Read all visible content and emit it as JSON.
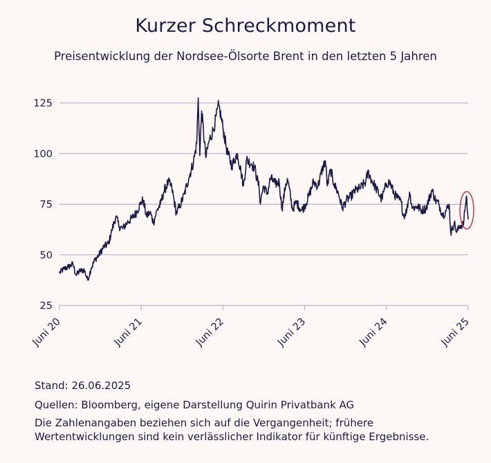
{
  "title": "Kurzer Schreckmoment",
  "subtitle": "Preisentwicklung der Nordsee-Ölsorte Brent in den letzten 5 Jahren",
  "footer": {
    "stand": "Stand: 26.06.2025",
    "sources": "Quellen: Bloomberg, eigene Darstellung Quirin Privatbank AG",
    "disclaimer": "Die Zahlenangaben beziehen sich auf die Vergangenheit; frühere Wertentwicklungen sind kein verlässlicher Indikator für künftige Ergebnisse."
  },
  "colors": {
    "line": "#1c1947",
    "grid": "#a9a5c7",
    "highlight": "#c0394b",
    "background": "#fdf8f5"
  },
  "chart_data": {
    "type": "line",
    "ylim": [
      25,
      125
    ],
    "yticks": [
      25,
      50,
      75,
      100,
      125
    ],
    "xlim": [
      "2020-06-26",
      "2025-06-26"
    ],
    "xticks": [
      {
        "label": "Juni 20",
        "date": "2020-06-26"
      },
      {
        "label": "Juni 21",
        "date": "2021-06-26"
      },
      {
        "label": "Juni 22",
        "date": "2022-06-26"
      },
      {
        "label": "Juni 23",
        "date": "2023-06-26"
      },
      {
        "label": "Juni 24",
        "date": "2024-06-26"
      },
      {
        "label": "Juni 25",
        "date": "2025-06-26"
      }
    ],
    "grid": true,
    "highlight": {
      "date": "2025-06-20",
      "value": 72,
      "shape": "ellipse"
    },
    "series": [
      {
        "points": [
          [
            "2020-06-26",
            41
          ],
          [
            "2020-07-15",
            43
          ],
          [
            "2020-08-05",
            44
          ],
          [
            "2020-08-25",
            45.5
          ],
          [
            "2020-09-08",
            40
          ],
          [
            "2020-09-25",
            42
          ],
          [
            "2020-10-15",
            42.5
          ],
          [
            "2020-10-30",
            37.5
          ],
          [
            "2020-11-15",
            43.5
          ],
          [
            "2020-12-01",
            47.5
          ],
          [
            "2020-12-20",
            50
          ],
          [
            "2021-01-10",
            54
          ],
          [
            "2021-01-31",
            55.5
          ],
          [
            "2021-02-15",
            62
          ],
          [
            "2021-03-05",
            69
          ],
          [
            "2021-03-20",
            64
          ],
          [
            "2021-04-05",
            63
          ],
          [
            "2021-04-25",
            66
          ],
          [
            "2021-05-15",
            68
          ],
          [
            "2021-06-05",
            71
          ],
          [
            "2021-06-26",
            76
          ],
          [
            "2021-07-05",
            77
          ],
          [
            "2021-07-20",
            69
          ],
          [
            "2021-08-05",
            71
          ],
          [
            "2021-08-20",
            66
          ],
          [
            "2021-09-05",
            72
          ],
          [
            "2021-09-20",
            75
          ],
          [
            "2021-10-05",
            81
          ],
          [
            "2021-10-25",
            86
          ],
          [
            "2021-11-10",
            83
          ],
          [
            "2021-11-30",
            70.5
          ],
          [
            "2021-12-15",
            74
          ],
          [
            "2022-01-05",
            80
          ],
          [
            "2022-01-25",
            88
          ],
          [
            "2022-02-15",
            96
          ],
          [
            "2022-03-01",
            105
          ],
          [
            "2022-03-08",
            127.5
          ],
          [
            "2022-03-15",
            99
          ],
          [
            "2022-03-23",
            121
          ],
          [
            "2022-04-11",
            98
          ],
          [
            "2022-04-25",
            106
          ],
          [
            "2022-05-15",
            112
          ],
          [
            "2022-06-08",
            124
          ],
          [
            "2022-06-26",
            113
          ],
          [
            "2022-07-15",
            101
          ],
          [
            "2022-08-05",
            94
          ],
          [
            "2022-08-30",
            100
          ],
          [
            "2022-09-15",
            91
          ],
          [
            "2022-09-26",
            84
          ],
          [
            "2022-10-10",
            97
          ],
          [
            "2022-10-31",
            95
          ],
          [
            "2022-11-15",
            93
          ],
          [
            "2022-12-05",
            83
          ],
          [
            "2022-12-09",
            76
          ],
          [
            "2022-12-25",
            84
          ],
          [
            "2023-01-10",
            80
          ],
          [
            "2023-01-25",
            88
          ],
          [
            "2023-02-15",
            85
          ],
          [
            "2023-03-05",
            86
          ],
          [
            "2023-03-17",
            72.5
          ],
          [
            "2023-04-03",
            85
          ],
          [
            "2023-04-12",
            87
          ],
          [
            "2023-05-03",
            72.5
          ],
          [
            "2023-05-20",
            76
          ],
          [
            "2023-06-12",
            72
          ],
          [
            "2023-06-26",
            74
          ],
          [
            "2023-07-15",
            79
          ],
          [
            "2023-08-05",
            86
          ],
          [
            "2023-08-25",
            84
          ],
          [
            "2023-09-15",
            93
          ],
          [
            "2023-09-27",
            96.5
          ],
          [
            "2023-10-06",
            84
          ],
          [
            "2023-10-20",
            92
          ],
          [
            "2023-11-05",
            85
          ],
          [
            "2023-11-25",
            80
          ],
          [
            "2023-12-12",
            73
          ],
          [
            "2023-12-30",
            77
          ],
          [
            "2024-01-20",
            79
          ],
          [
            "2024-02-10",
            82
          ],
          [
            "2024-03-01",
            83
          ],
          [
            "2024-03-25",
            86
          ],
          [
            "2024-04-05",
            91
          ],
          [
            "2024-04-20",
            87
          ],
          [
            "2024-05-10",
            83
          ],
          [
            "2024-06-04",
            77.5
          ],
          [
            "2024-06-26",
            85
          ],
          [
            "2024-07-10",
            86
          ],
          [
            "2024-07-31",
            80
          ],
          [
            "2024-08-15",
            78
          ],
          [
            "2024-08-31",
            76
          ],
          [
            "2024-09-10",
            69
          ],
          [
            "2024-09-25",
            72
          ],
          [
            "2024-10-07",
            81
          ],
          [
            "2024-10-20",
            73
          ],
          [
            "2024-11-10",
            74
          ],
          [
            "2024-11-30",
            72
          ],
          [
            "2024-12-20",
            73
          ],
          [
            "2025-01-15",
            82
          ],
          [
            "2025-01-31",
            77
          ],
          [
            "2025-02-15",
            75
          ],
          [
            "2025-03-05",
            69.5
          ],
          [
            "2025-03-20",
            72
          ],
          [
            "2025-04-02",
            75
          ],
          [
            "2025-04-09",
            60.5
          ],
          [
            "2025-04-25",
            66
          ],
          [
            "2025-05-05",
            61
          ],
          [
            "2025-05-20",
            64.5
          ],
          [
            "2025-06-05",
            65
          ],
          [
            "2025-06-13",
            74
          ],
          [
            "2025-06-19",
            79
          ],
          [
            "2025-06-23",
            71
          ],
          [
            "2025-06-26",
            67.5
          ]
        ]
      }
    ]
  }
}
